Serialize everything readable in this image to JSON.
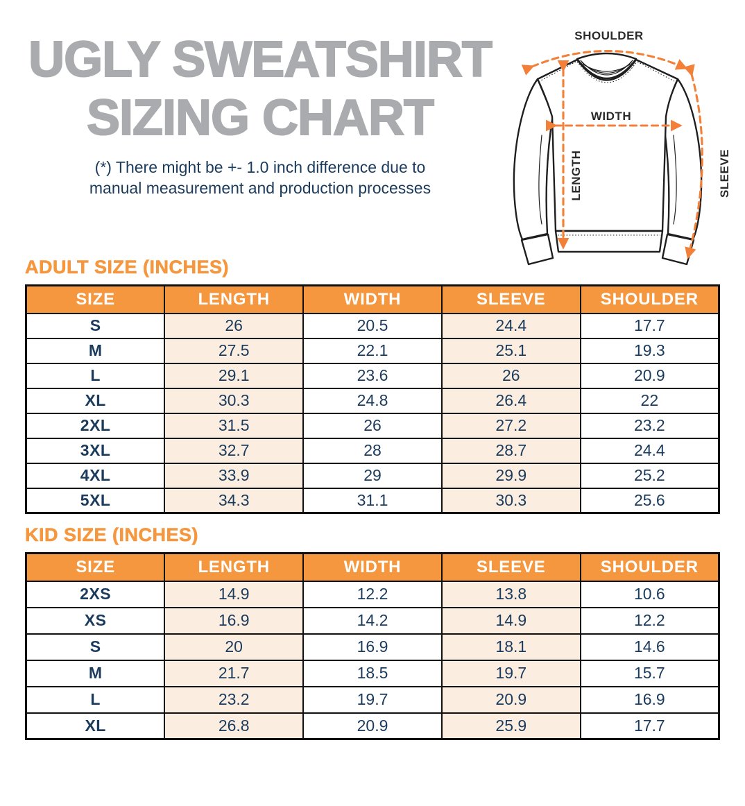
{
  "header": {
    "title_line1": "UGLY SWEATSHIRT",
    "title_line2": "SIZING CHART",
    "disclaimer_line1": "(*) There might be +- 1.0 inch difference due to",
    "disclaimer_line2": "manual measurement and production processes"
  },
  "diagram": {
    "labels": {
      "shoulder": "SHOULDER",
      "width": "WIDTH",
      "length": "LENGTH",
      "sleeve": "SLEEVE"
    }
  },
  "adult_table": {
    "section_title": "ADULT SIZE (INCHES)",
    "headers": [
      "SIZE",
      "LENGTH",
      "WIDTH",
      "SLEEVE",
      "SHOULDER"
    ],
    "rows": [
      [
        "S",
        "26",
        "20.5",
        "24.4",
        "17.7"
      ],
      [
        "M",
        "27.5",
        "22.1",
        "25.1",
        "19.3"
      ],
      [
        "L",
        "29.1",
        "23.6",
        "26",
        "20.9"
      ],
      [
        "XL",
        "30.3",
        "24.8",
        "26.4",
        "22"
      ],
      [
        "2XL",
        "31.5",
        "26",
        "27.2",
        "23.2"
      ],
      [
        "3XL",
        "32.7",
        "28",
        "28.7",
        "24.4"
      ],
      [
        "4XL",
        "33.9",
        "29",
        "29.9",
        "25.2"
      ],
      [
        "5XL",
        "34.3",
        "31.1",
        "30.3",
        "25.6"
      ]
    ]
  },
  "kid_table": {
    "section_title": "KID SIZE (INCHES)",
    "headers": [
      "SIZE",
      "LENGTH",
      "WIDTH",
      "SLEEVE",
      "SHOULDER"
    ],
    "rows": [
      [
        "2XS",
        "14.9",
        "12.2",
        "13.8",
        "10.6"
      ],
      [
        "XS",
        "16.9",
        "14.2",
        "14.9",
        "12.2"
      ],
      [
        "S",
        "20",
        "16.9",
        "18.1",
        "14.6"
      ],
      [
        "M",
        "21.7",
        "18.5",
        "19.7",
        "15.7"
      ],
      [
        "L",
        "23.2",
        "19.7",
        "20.9",
        "16.9"
      ],
      [
        "XL",
        "26.8",
        "20.9",
        "25.9",
        "17.7"
      ]
    ]
  },
  "colors": {
    "orange": "#F5973E",
    "peach": "#FBEEE1",
    "navy": "#1B3B5D",
    "gray_title": "#A9ABAE",
    "border": "#101010",
    "arrow": "#F28038",
    "line": "#1f1f1f",
    "label": "#2b2b2b"
  }
}
